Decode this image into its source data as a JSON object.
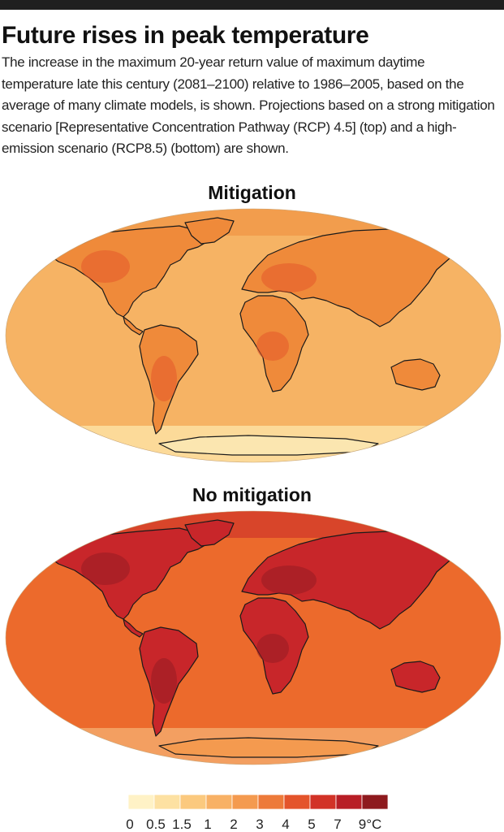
{
  "header": {
    "title": "Future rises in peak temperature",
    "description": "The increase in the maximum 20-year return value of maximum daytime temperature late this century (2081–2100) relative to 1986–2005, based on the average of many climate models, is shown. Projections based on a strong mitigation scenario [Representative Concentration Pathway (RCP) 4.5] (top) and a high-emission scenario (RCP8.5) (bottom) are shown."
  },
  "maps": [
    {
      "title": "Mitigation",
      "scenario": "RCP4.5",
      "base_color": "#f6b364",
      "land_color": "#ef8a3a",
      "hot_color": "#e4582a"
    },
    {
      "title": "No mitigation",
      "scenario": "RCP8.5",
      "base_color": "#ec6a2c",
      "land_color": "#c8262a",
      "hot_color": "#961c22"
    }
  ],
  "legend": {
    "unit": "°C",
    "bins": [
      {
        "color": "#fff2c6"
      },
      {
        "color": "#fde1a2"
      },
      {
        "color": "#fbc97e"
      },
      {
        "color": "#f8b165"
      },
      {
        "color": "#f49a4f"
      },
      {
        "color": "#ed7a3a"
      },
      {
        "color": "#e4542b"
      },
      {
        "color": "#d23227"
      },
      {
        "color": "#b81e26"
      },
      {
        "color": "#8e1a1e"
      }
    ],
    "labels": [
      "0",
      "0.5",
      "1.5",
      "1",
      "2",
      "3",
      "4",
      "5",
      "7",
      "9°C"
    ]
  }
}
